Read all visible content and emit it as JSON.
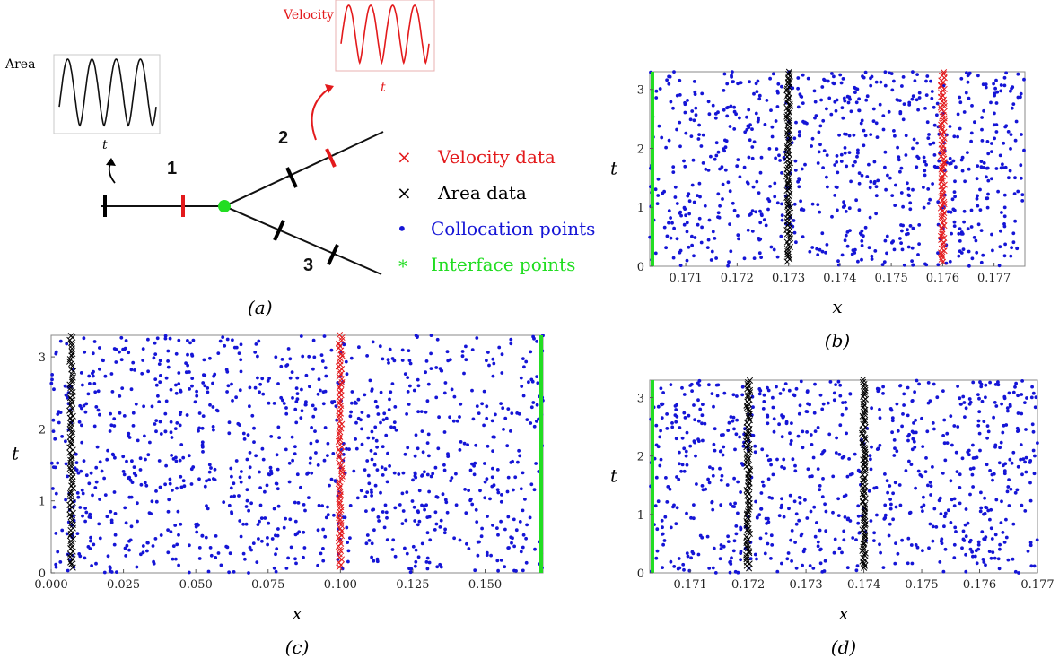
{
  "schematic": {
    "caption": "(a)",
    "area_inset": {
      "label": "Area",
      "xlabel": "t",
      "color": "#111111"
    },
    "velocity_inset": {
      "label": "Velocity",
      "xlabel": "t",
      "color": "#e31a1c"
    },
    "branches": [
      "1",
      "2",
      "3"
    ],
    "legend": [
      {
        "symbol": "×",
        "text": "Velocity data",
        "color": "#e31a1c"
      },
      {
        "symbol": "×",
        "text": "Area data",
        "color": "#000000"
      },
      {
        "symbol": "•",
        "text": "Collocation points",
        "color": "#1515d6"
      },
      {
        "symbol": "*",
        "text": "Interface points",
        "color": "#22dd22"
      }
    ]
  },
  "colors": {
    "collocation": "#1515d6",
    "velocity": "#e31a1c",
    "area": "#000000",
    "interface": "#22dd22"
  },
  "chart_data": [
    {
      "id": "c",
      "caption": "(c)",
      "type": "scatter",
      "xlabel": "x",
      "ylabel": "t",
      "xlim": [
        0.0,
        0.17
      ],
      "ylim": [
        0,
        3.3
      ],
      "xticks": [
        "0.000",
        "0.025",
        "0.050",
        "0.075",
        "0.100",
        "0.125",
        "0.150"
      ],
      "xtick_values": [
        0.0,
        0.025,
        0.05,
        0.075,
        0.1,
        0.125,
        0.15
      ],
      "yticks": [
        "0",
        "1",
        "2",
        "3"
      ],
      "yticks_values": [
        0,
        1,
        2,
        3
      ],
      "series": [
        {
          "name": "Area data",
          "kind": "area",
          "x": 0.007
        },
        {
          "name": "Velocity data",
          "kind": "velocity",
          "x": 0.1
        },
        {
          "name": "Interface points",
          "kind": "interface",
          "x": 0.17,
          "side": "right"
        },
        {
          "name": "Collocation points",
          "kind": "collocation",
          "count": 1100
        }
      ]
    },
    {
      "id": "b",
      "caption": "(b)",
      "type": "scatter",
      "xlabel": "x",
      "ylabel": "t",
      "xlim": [
        0.1703,
        0.1776
      ],
      "ylim": [
        0,
        3.3
      ],
      "xticks": [
        "0.171",
        "0.172",
        "0.173",
        "0.174",
        "0.175",
        "0.176",
        "0.177"
      ],
      "xtick_values": [
        0.171,
        0.172,
        0.173,
        0.174,
        0.175,
        0.176,
        0.177
      ],
      "yticks": [
        "0",
        "1",
        "2",
        "3"
      ],
      "yticks_values": [
        0,
        1,
        2,
        3
      ],
      "series": [
        {
          "name": "Interface points",
          "kind": "interface",
          "x": 0.1703,
          "side": "left"
        },
        {
          "name": "Area data",
          "kind": "area",
          "x": 0.173
        },
        {
          "name": "Velocity data",
          "kind": "velocity",
          "x": 0.176
        },
        {
          "name": "Collocation points",
          "kind": "collocation",
          "count": 800
        }
      ]
    },
    {
      "id": "d",
      "caption": "(d)",
      "type": "scatter",
      "xlabel": "x",
      "ylabel": "t",
      "xlim": [
        0.1703,
        0.177
      ],
      "ylim": [
        0,
        3.3
      ],
      "xticks": [
        "0.171",
        "0.172",
        "0.173",
        "0.174",
        "0.175",
        "0.176",
        "0.177"
      ],
      "xtick_values": [
        0.171,
        0.172,
        0.173,
        0.174,
        0.175,
        0.176,
        0.177
      ],
      "yticks": [
        "0",
        "1",
        "2",
        "3"
      ],
      "yticks_values": [
        0,
        1,
        2,
        3
      ],
      "series": [
        {
          "name": "Interface points",
          "kind": "interface",
          "x": 0.1703,
          "side": "left"
        },
        {
          "name": "Area data",
          "kind": "area",
          "x": 0.172
        },
        {
          "name": "Area data",
          "kind": "area",
          "x": 0.174
        },
        {
          "name": "Collocation points",
          "kind": "collocation",
          "count": 800
        }
      ]
    }
  ]
}
